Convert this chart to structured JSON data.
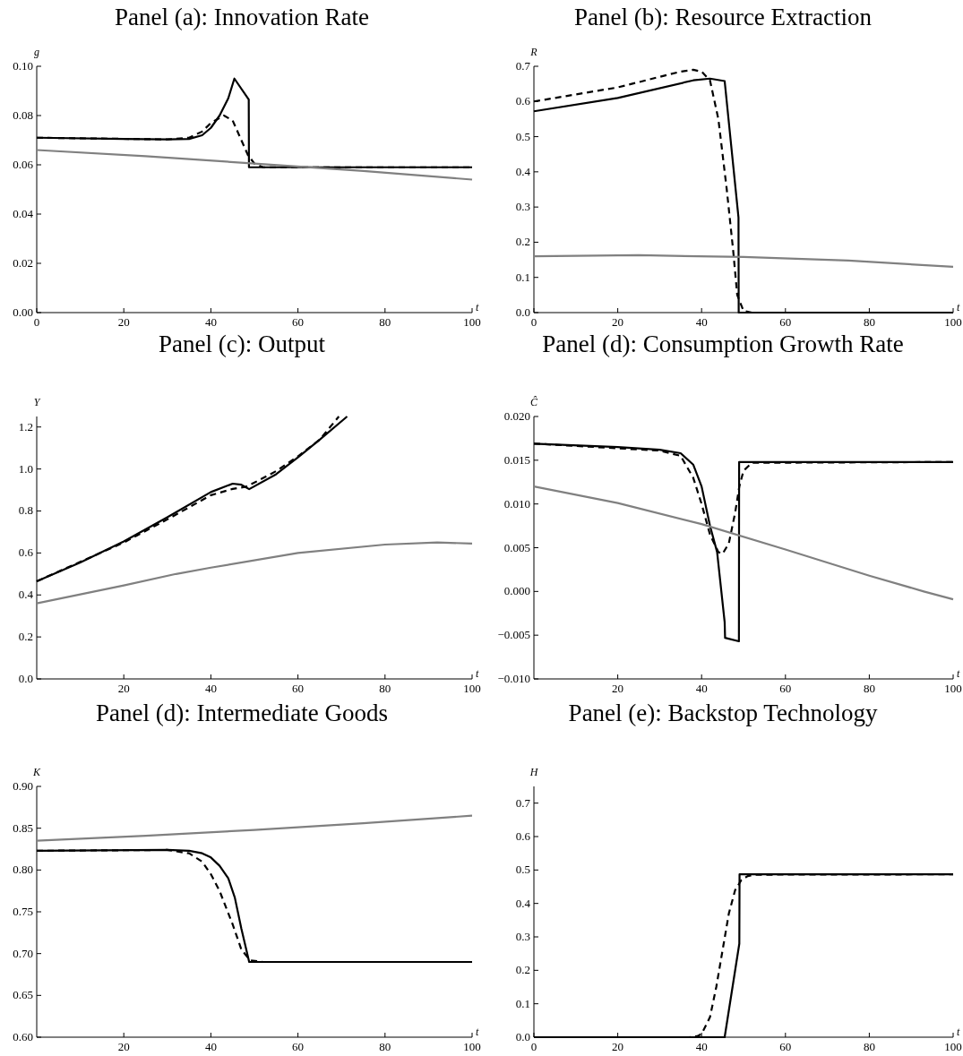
{
  "chart_data": [
    {
      "type": "line",
      "title": "Panel (a): Innovation Rate",
      "xlabel": "t",
      "ylabel": "g",
      "xlim": [
        0,
        100
      ],
      "ylim": [
        0,
        0.1
      ],
      "xticks": [
        0,
        20,
        40,
        60,
        80,
        100
      ],
      "yticks": [
        {
          "value": 0,
          "label": "0.00"
        },
        {
          "value": 0.02,
          "label": "0.02"
        },
        {
          "value": 0.04,
          "label": "0.04"
        },
        {
          "value": 0.06,
          "label": "0.06"
        },
        {
          "value": 0.08,
          "label": "0.08"
        },
        {
          "value": 0.1,
          "label": "0.10"
        }
      ],
      "series": [
        {
          "color": "#000000",
          "line_style": "solid",
          "x": [
            0,
            20,
            30,
            35,
            38,
            40,
            42,
            44,
            45.4,
            48.7,
            48.75,
            100
          ],
          "values": [
            0.071,
            0.0705,
            0.0703,
            0.0705,
            0.072,
            0.075,
            0.08,
            0.087,
            0.095,
            0.0865,
            0.059,
            0.059
          ]
        },
        {
          "color": "#000000",
          "line_style": "dashed",
          "x": [
            0,
            30,
            35,
            38,
            40,
            43,
            45,
            47,
            48.5,
            50,
            52,
            100
          ],
          "values": [
            0.071,
            0.0703,
            0.071,
            0.0735,
            0.077,
            0.08,
            0.078,
            0.07,
            0.064,
            0.0605,
            0.059,
            0.059
          ]
        },
        {
          "color": "#808080",
          "line_style": "solid",
          "x": [
            0,
            25,
            50,
            75,
            100
          ],
          "values": [
            0.066,
            0.0635,
            0.0605,
            0.0575,
            0.054
          ]
        }
      ]
    },
    {
      "type": "line",
      "title": "Panel (b): Resource Extraction",
      "xlabel": "t",
      "ylabel": "R",
      "xlim": [
        0,
        100
      ],
      "ylim": [
        0,
        0.7
      ],
      "xticks": [
        0,
        20,
        40,
        60,
        80,
        100
      ],
      "yticks": [
        {
          "value": 0,
          "label": "0.0"
        },
        0.1,
        0.2,
        0.3,
        0.4,
        0.5,
        0.6,
        0.7
      ],
      "series": [
        {
          "color": "#000000",
          "line_style": "solid",
          "x": [
            0,
            20,
            38,
            42,
            45.5,
            48.8,
            48.85,
            100
          ],
          "values": [
            0.572,
            0.61,
            0.66,
            0.665,
            0.658,
            0.27,
            0,
            0
          ]
        },
        {
          "color": "#000000",
          "line_style": "dashed",
          "x": [
            0,
            20,
            35,
            38,
            40,
            42,
            44,
            46,
            47.5,
            48.5,
            50,
            52,
            100
          ],
          "values": [
            0.6,
            0.64,
            0.685,
            0.69,
            0.685,
            0.66,
            0.55,
            0.35,
            0.18,
            0.05,
            0.005,
            0,
            0
          ]
        },
        {
          "color": "#808080",
          "line_style": "solid",
          "x": [
            0,
            25,
            50,
            75,
            100
          ],
          "values": [
            0.16,
            0.163,
            0.158,
            0.148,
            0.13
          ]
        }
      ]
    },
    {
      "type": "line",
      "title": "Panel (c): Output",
      "xlabel": "t",
      "ylabel": "Y",
      "xlim": [
        0,
        100
      ],
      "ylim": [
        0,
        1.25
      ],
      "xticks": [
        20,
        40,
        60,
        80,
        100
      ],
      "yticks": [
        {
          "value": 0,
          "label": "0.0"
        },
        0.2,
        0.4,
        0.6,
        0.8,
        {
          "value": 1,
          "label": "1.0"
        },
        1.2
      ],
      "series": [
        {
          "color": "#000000",
          "line_style": "solid",
          "x": [
            0,
            10,
            20,
            30,
            40,
            45,
            47,
            48.8,
            55,
            60,
            65,
            71.3
          ],
          "values": [
            0.465,
            0.555,
            0.655,
            0.77,
            0.89,
            0.93,
            0.925,
            0.904,
            0.975,
            1.055,
            1.14,
            1.25
          ]
        },
        {
          "color": "#000000",
          "line_style": "dashed",
          "x": [
            0,
            20,
            30,
            40,
            45,
            48,
            50,
            55,
            60,
            65,
            69.4
          ],
          "values": [
            0.465,
            0.65,
            0.76,
            0.875,
            0.905,
            0.915,
            0.935,
            0.99,
            1.06,
            1.14,
            1.25
          ]
        },
        {
          "color": "#808080",
          "line_style": "solid",
          "x": [
            0,
            20,
            32,
            40,
            60,
            80,
            92,
            100
          ],
          "values": [
            0.36,
            0.445,
            0.5,
            0.53,
            0.6,
            0.64,
            0.65,
            0.645
          ]
        }
      ]
    },
    {
      "type": "line",
      "title": "Panel (d): Consumption Growth Rate",
      "xlabel": "t",
      "ylabel": "Ĉ",
      "xlim": [
        0,
        100
      ],
      "ylim": [
        -0.01,
        0.02
      ],
      "xticks": [
        20,
        40,
        60,
        80,
        100
      ],
      "yticks": [
        {
          "value": -0.01,
          "label": "−0.010"
        },
        {
          "value": -0.005,
          "label": "−0.005"
        },
        {
          "value": 0,
          "label": "0.000"
        },
        {
          "value": 0.005,
          "label": "0.005"
        },
        {
          "value": 0.01,
          "label": "0.010"
        },
        {
          "value": 0.015,
          "label": "0.015"
        },
        {
          "value": 0.02,
          "label": "0.020"
        }
      ],
      "series": [
        {
          "color": "#000000",
          "line_style": "solid",
          "x": [
            0,
            20,
            30,
            35,
            38,
            40,
            42,
            43.7,
            45.5,
            45.6,
            48.9,
            48.95,
            100
          ],
          "values": [
            0.0169,
            0.0165,
            0.0162,
            0.0158,
            0.0145,
            0.012,
            0.0075,
            0.0045,
            -0.0035,
            -0.0053,
            -0.0057,
            0.0148,
            0.0148
          ]
        },
        {
          "color": "#000000",
          "line_style": "dashed",
          "x": [
            0,
            30,
            35,
            38,
            40,
            42,
            44,
            45,
            46.5,
            48,
            49,
            50,
            52,
            100
          ],
          "values": [
            0.0169,
            0.0161,
            0.0155,
            0.013,
            0.01,
            0.0065,
            0.0045,
            0.0043,
            0.0055,
            0.009,
            0.012,
            0.0138,
            0.0147,
            0.0148
          ]
        },
        {
          "color": "#808080",
          "line_style": "solid",
          "x": [
            0,
            20,
            40,
            60,
            80,
            93,
            100
          ],
          "values": [
            0.012,
            0.0101,
            0.0077,
            0.0048,
            0.0018,
            0,
            -0.0009
          ]
        }
      ]
    },
    {
      "type": "line",
      "title": "Panel (d): Intermediate Goods",
      "xlabel": "t",
      "ylabel": "K",
      "xlim": [
        0,
        100
      ],
      "ylim": [
        0.6,
        0.9
      ],
      "xticks": [
        20,
        40,
        60,
        80,
        100
      ],
      "yticks": [
        {
          "value": 0.6,
          "label": "0.60"
        },
        0.65,
        {
          "value": 0.7,
          "label": "0.70"
        },
        0.75,
        {
          "value": 0.8,
          "label": "0.80"
        },
        0.85,
        {
          "value": 0.9,
          "label": "0.90"
        }
      ],
      "series": [
        {
          "color": "#000000",
          "line_style": "solid",
          "x": [
            0,
            30,
            35,
            38,
            40,
            42,
            44,
            45.5,
            47,
            48.8,
            100
          ],
          "values": [
            0.823,
            0.824,
            0.823,
            0.82,
            0.815,
            0.805,
            0.79,
            0.767,
            0.73,
            0.69,
            0.69
          ]
        },
        {
          "color": "#000000",
          "line_style": "dashed",
          "x": [
            0,
            30,
            35,
            38,
            40,
            42,
            43.5,
            45,
            47,
            49,
            52,
            100
          ],
          "values": [
            0.823,
            0.824,
            0.82,
            0.81,
            0.795,
            0.775,
            0.755,
            0.735,
            0.705,
            0.692,
            0.69,
            0.69
          ]
        },
        {
          "color": "#808080",
          "line_style": "solid",
          "x": [
            0,
            25,
            50,
            75,
            100
          ],
          "values": [
            0.835,
            0.841,
            0.848,
            0.856,
            0.865
          ]
        }
      ]
    },
    {
      "type": "line",
      "title": "Panel (e): Backstop Technology",
      "xlabel": "t",
      "ylabel": "H",
      "xlim": [
        0,
        100
      ],
      "ylim": [
        0,
        0.75
      ],
      "xticks": [
        0,
        20,
        40,
        60,
        80,
        100
      ],
      "yticks": [
        {
          "value": 0,
          "label": "0.0"
        },
        0.1,
        0.2,
        0.3,
        0.4,
        0.5,
        0.6,
        0.7
      ],
      "series": [
        {
          "color": "#000000",
          "line_style": "solid",
          "x": [
            0,
            45.5,
            49,
            49.05,
            100
          ],
          "values": [
            0,
            0,
            0.28,
            0.487,
            0.487
          ]
        },
        {
          "color": "#000000",
          "line_style": "dashed",
          "x": [
            0,
            37,
            39,
            40,
            42,
            43.5,
            45,
            46.5,
            48,
            49.5,
            51,
            53,
            100
          ],
          "values": [
            0,
            0,
            0.003,
            0.01,
            0.06,
            0.15,
            0.26,
            0.37,
            0.44,
            0.47,
            0.482,
            0.486,
            0.487
          ]
        }
      ]
    }
  ]
}
